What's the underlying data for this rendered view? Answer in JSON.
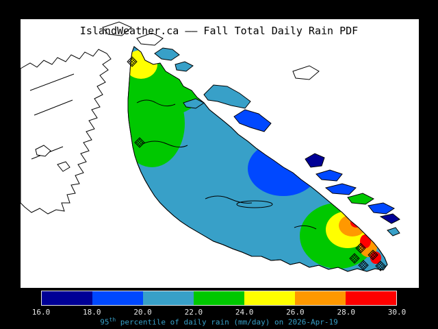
{
  "window": {
    "background": "#000000"
  },
  "title": "IslandWeather.ca —— Fall Total Daily Rain PDF",
  "map": {
    "water": "#ffffff",
    "coastline": "#000000",
    "unshaded_land": "#ffffff"
  },
  "palette": {
    "navy": "#000096",
    "blue": "#0048ff",
    "teal": "#38a0c8",
    "green": "#00c800",
    "yellow": "#ffff00",
    "orange": "#ff9800",
    "red": "#ff0000"
  },
  "colorbar": {
    "ticks": [
      "16.0",
      "18.0",
      "20.0",
      "22.0",
      "24.0",
      "26.0",
      "28.0",
      "30.0"
    ],
    "segments": [
      "navy",
      "blue",
      "teal",
      "green",
      "yellow",
      "orange",
      "red"
    ],
    "tick_color": "#e8e8e8",
    "border_color": "#e8e8e8"
  },
  "caption": {
    "value": "95",
    "sup": "th",
    "rest": " percentile of daily rain (mm/day) on 2026-Apr-19",
    "color": "#38a0c8"
  },
  "chart_data": {
    "type": "heatmap",
    "title": "IslandWeather.ca —— Fall Total Daily Rain PDF",
    "quantity": "95th percentile of daily rain (mm/day)",
    "season": "Fall",
    "date": "2026-Apr-19",
    "colorbar_range": [
      16.0,
      30.0
    ],
    "colorbar_step": 2.0,
    "levels_mm_day": [
      16.0,
      18.0,
      20.0,
      22.0,
      24.0,
      26.0,
      28.0,
      30.0
    ],
    "level_colors": [
      "#000096",
      "#0048ff",
      "#38a0c8",
      "#00c800",
      "#ffff00",
      "#ff9800",
      "#ff0000"
    ],
    "legend_position": "bottom",
    "regions": [
      {
        "area": "island base (most of Vancouver Island)",
        "value_mm_day": "20-22",
        "color": "teal"
      },
      {
        "area": "northwest island highlands",
        "value_mm_day": "22-24",
        "color": "green"
      },
      {
        "area": "north island tip patch",
        "value_mm_day": "24-26",
        "color": "yellow"
      },
      {
        "area": "east-central coast rain-shadow blob",
        "value_mm_day": "18-20",
        "color": "blue"
      },
      {
        "area": "core of east-central blob",
        "value_mm_day": "16-18",
        "color": "navy"
      },
      {
        "area": "southeast island ring (outer)",
        "value_mm_day": "22-24",
        "color": "green"
      },
      {
        "area": "southeast island ring (mid)",
        "value_mm_day": "24-26",
        "color": "yellow"
      },
      {
        "area": "southeast island ring (inner)",
        "value_mm_day": "26-28",
        "color": "orange"
      },
      {
        "area": "southeast coastal hot spots",
        "value_mm_day": "28-30",
        "color": "red"
      }
    ],
    "annotations": "hatched diamond markers = station locations (north tip, west coast, southeast cluster)"
  }
}
